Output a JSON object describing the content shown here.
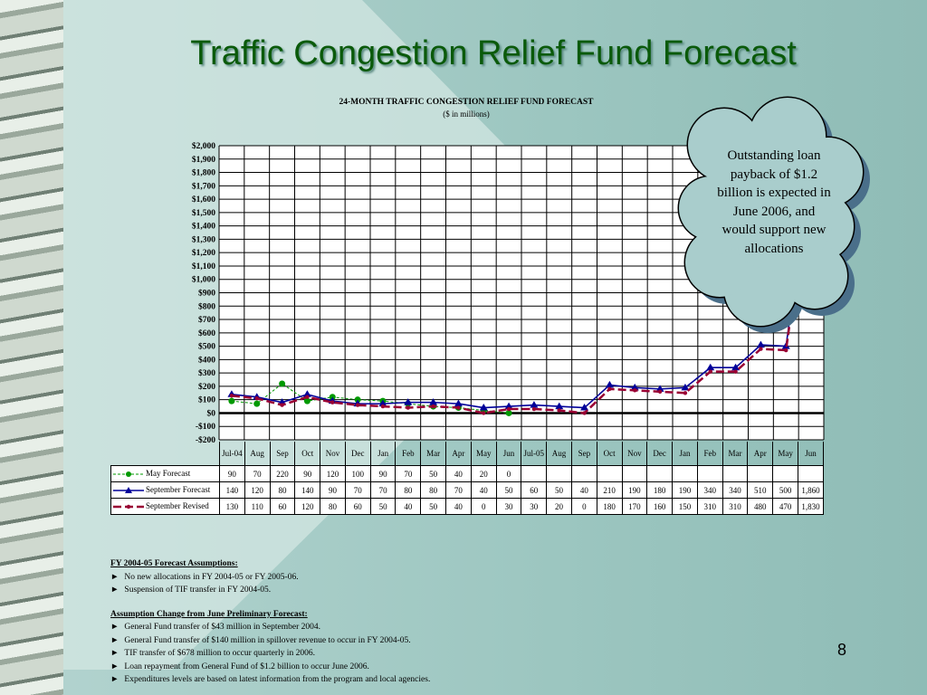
{
  "slide_title": "Traffic Congestion Relief Fund Forecast",
  "chart_data": {
    "type": "line",
    "title": "24-MONTH TRAFFIC CONGESTION RELIEF FUND FORECAST",
    "subtitle": "($ in millions)",
    "categories": [
      "Jul-04",
      "Aug",
      "Sep",
      "Oct",
      "Nov",
      "Dec",
      "Jan",
      "Feb",
      "Mar",
      "Apr",
      "May",
      "Jun",
      "Jul-05",
      "Aug",
      "Sep",
      "Oct",
      "Nov",
      "Dec",
      "Jan",
      "Feb",
      "Mar",
      "Apr",
      "May",
      "Jun"
    ],
    "series": [
      {
        "name": "May Forecast",
        "color": "#009900",
        "values": [
          90,
          70,
          220,
          90,
          120,
          100,
          90,
          70,
          50,
          40,
          20,
          0,
          null,
          null,
          null,
          null,
          null,
          null,
          null,
          null,
          null,
          null,
          null,
          null
        ]
      },
      {
        "name": "September Forecast",
        "color": "#000099",
        "values": [
          140,
          120,
          80,
          140,
          90,
          70,
          70,
          80,
          80,
          70,
          40,
          50,
          60,
          50,
          40,
          210,
          190,
          180,
          190,
          340,
          340,
          510,
          500,
          1860
        ],
        "value_labels": [
          null,
          null,
          null,
          null,
          null,
          null,
          null,
          null,
          null,
          null,
          null,
          null,
          null,
          null,
          null,
          null,
          null,
          null,
          null,
          null,
          null,
          null,
          null,
          "1,860"
        ]
      },
      {
        "name": "September Revised",
        "color": "#990033",
        "values": [
          130,
          110,
          60,
          120,
          80,
          60,
          50,
          40,
          50,
          40,
          0,
          30,
          30,
          20,
          0,
          180,
          170,
          160,
          150,
          310,
          310,
          480,
          470,
          1830
        ],
        "value_labels": [
          null,
          null,
          null,
          null,
          null,
          null,
          null,
          null,
          null,
          null,
          null,
          null,
          null,
          null,
          null,
          null,
          null,
          null,
          null,
          null,
          null,
          null,
          null,
          "1,830"
        ]
      }
    ],
    "ylim": [
      -200,
      2000
    ],
    "yticks": [
      {
        "value": -200,
        "label": "-$200"
      },
      {
        "value": -100,
        "label": "-$100"
      },
      {
        "value": 0,
        "label": "$0"
      },
      {
        "value": 100,
        "label": "$100"
      },
      {
        "value": 200,
        "label": "$200"
      },
      {
        "value": 300,
        "label": "$300"
      },
      {
        "value": 400,
        "label": "$400"
      },
      {
        "value": 500,
        "label": "$500"
      },
      {
        "value": 600,
        "label": "$600"
      },
      {
        "value": 700,
        "label": "$700"
      },
      {
        "value": 800,
        "label": "$800"
      },
      {
        "value": 900,
        "label": "$900"
      },
      {
        "value": 1000,
        "label": "$1,000"
      },
      {
        "value": 1100,
        "label": "$1,100"
      },
      {
        "value": 1200,
        "label": "$1,200"
      },
      {
        "value": 1300,
        "label": "$1,300"
      },
      {
        "value": 1400,
        "label": "$1,400"
      },
      {
        "value": 1500,
        "label": "$1,500"
      },
      {
        "value": 1600,
        "label": "$1,600"
      },
      {
        "value": 1700,
        "label": "$1,700"
      },
      {
        "value": 1800,
        "label": "$1,800"
      },
      {
        "value": 1900,
        "label": "$1,900"
      },
      {
        "value": 2000,
        "label": "$2,000"
      }
    ],
    "grid": true,
    "annotation": "Outstanding loan payback of $1.2 billion is expected in June 2006, and would support new allocations"
  },
  "notes": [
    {
      "heading": "FY 2004-05 Forecast Assumptions:",
      "items": [
        "No new allocations in FY 2004-05 or FY 2005-06.",
        "Suspension of TIF transfer in FY 2004-05."
      ]
    },
    {
      "heading": "Assumption Change from June Preliminary Forecast:",
      "items": [
        "General Fund transfer of $43 million in September 2004.",
        "General Fund transfer  of $140 million in spillover revenue to occur in FY 2004-05.",
        "TIF transfer of $678 million to occur quarterly in 2006.",
        "Loan repayment from General Fund of $1.2 billion to occur June 2006.",
        "Expenditures levels are based on latest information from the program and local agencies."
      ]
    }
  ],
  "page_number": "8"
}
